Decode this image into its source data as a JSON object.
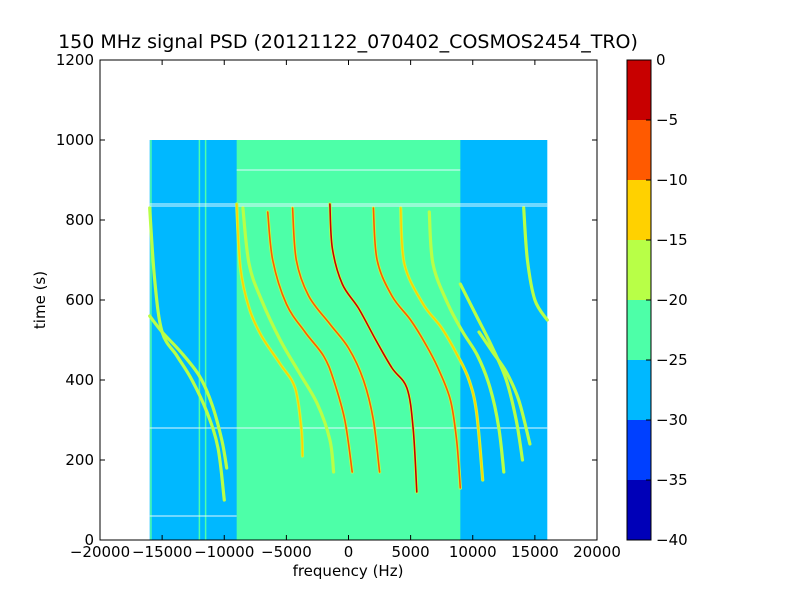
{
  "chart_data": {
    "type": "heatmap",
    "title": "150 MHz signal PSD (20121122_070402_COSMOS2454_TRO)",
    "xlabel": "frequency (Hz)",
    "ylabel": "time (s)",
    "xlim": [
      -20000,
      20000
    ],
    "ylim": [
      0,
      1200
    ],
    "xticks": [
      -20000,
      -15000,
      -10000,
      -5000,
      0,
      5000,
      10000,
      15000,
      20000
    ],
    "xtick_labels": [
      "−20000",
      "−15000",
      "−10000",
      "−5000",
      "0",
      "5000",
      "10000",
      "15000",
      "20000"
    ],
    "yticks": [
      0,
      200,
      400,
      600,
      800,
      1000,
      1200
    ],
    "ytick_labels": [
      "0",
      "200",
      "400",
      "600",
      "800",
      "1000",
      "1200"
    ],
    "data_extent": {
      "x": [
        -16000,
        16000
      ],
      "y": [
        0,
        1000
      ]
    },
    "background_band": {
      "x": [
        -9000,
        9000
      ],
      "level": -22.5
    },
    "outer_level": -27.5,
    "colorbar": {
      "ticks": [
        0,
        -5,
        -10,
        -15,
        -20,
        -25,
        -30,
        -35,
        -40
      ],
      "tick_labels": [
        "0",
        "−5",
        "−10",
        "−15",
        "−20",
        "−25",
        "−30",
        "−35",
        "−40"
      ],
      "levels": [
        {
          "from": -40,
          "to": -35,
          "color": "#0000b8"
        },
        {
          "from": -35,
          "to": -30,
          "color": "#0040ff"
        },
        {
          "from": -30,
          "to": -25,
          "color": "#00b8ff"
        },
        {
          "from": -25,
          "to": -20,
          "color": "#4dffa8"
        },
        {
          "from": -20,
          "to": -15,
          "color": "#b8ff47"
        },
        {
          "from": -15,
          "to": -10,
          "color": "#ffd100"
        },
        {
          "from": -10,
          "to": -5,
          "color": "#ff5a00"
        },
        {
          "from": -5,
          "to": 0,
          "color": "#c80000"
        }
      ]
    },
    "vertical_lines": [
      {
        "x": -15900,
        "level": -22.5
      },
      {
        "x": -12000,
        "level": -22.5
      },
      {
        "x": -11500,
        "level": -22.5
      }
    ],
    "horizontal_lines": [
      {
        "y": 840,
        "x": [
          -16000,
          16000
        ]
      },
      {
        "y": 835,
        "x": [
          -16000,
          16000
        ]
      },
      {
        "y": 925,
        "x": [
          -9000,
          9000
        ]
      },
      {
        "y": 280,
        "x": [
          -16000,
          16000
        ]
      },
      {
        "y": 60,
        "x": [
          -16000,
          -9000
        ]
      }
    ],
    "traces": [
      {
        "points": [
          [
            -16000,
            830
          ],
          [
            -15600,
            650
          ],
          [
            -15000,
            520
          ],
          [
            -13800,
            460
          ],
          [
            -12600,
            400
          ],
          [
            -11400,
            320
          ],
          [
            -10500,
            230
          ],
          [
            -10000,
            100
          ]
        ],
        "level": -17.5
      },
      {
        "points": [
          [
            -16000,
            560
          ],
          [
            -15000,
            520
          ],
          [
            -13500,
            470
          ],
          [
            -12000,
            410
          ],
          [
            -11000,
            340
          ],
          [
            -10200,
            250
          ],
          [
            -9800,
            180
          ]
        ],
        "level": -17.5
      },
      {
        "points": [
          [
            -9000,
            840
          ],
          [
            -8700,
            680
          ],
          [
            -8000,
            580
          ],
          [
            -7000,
            510
          ],
          [
            -5500,
            440
          ],
          [
            -4300,
            380
          ],
          [
            -3800,
            280
          ],
          [
            -3700,
            210
          ]
        ],
        "level": -12.5
      },
      {
        "points": [
          [
            -8500,
            830
          ],
          [
            -8000,
            690
          ],
          [
            -7000,
            600
          ],
          [
            -5500,
            500
          ],
          [
            -4000,
            420
          ],
          [
            -2500,
            340
          ],
          [
            -1500,
            250
          ],
          [
            -1200,
            170
          ]
        ],
        "level": -17.5
      },
      {
        "points": [
          [
            -6500,
            820
          ],
          [
            -6100,
            700
          ],
          [
            -5000,
            590
          ],
          [
            -3500,
            520
          ],
          [
            -2000,
            460
          ],
          [
            -1200,
            400
          ],
          [
            -300,
            300
          ],
          [
            300,
            170
          ]
        ],
        "level": -7.5
      },
      {
        "points": [
          [
            -4500,
            830
          ],
          [
            -4200,
            700
          ],
          [
            -3200,
            610
          ],
          [
            -1500,
            540
          ],
          [
            0,
            480
          ],
          [
            1200,
            400
          ],
          [
            2000,
            300
          ],
          [
            2500,
            170
          ]
        ],
        "level": -7.5
      },
      {
        "points": [
          [
            -1500,
            840
          ],
          [
            -1300,
            730
          ],
          [
            -500,
            640
          ],
          [
            800,
            580
          ],
          [
            2200,
            500
          ],
          [
            3500,
            430
          ],
          [
            4700,
            380
          ],
          [
            5200,
            280
          ],
          [
            5500,
            120
          ]
        ],
        "level": -2.5
      },
      {
        "points": [
          [
            2000,
            830
          ],
          [
            2300,
            700
          ],
          [
            3500,
            610
          ],
          [
            5000,
            550
          ],
          [
            6200,
            490
          ],
          [
            7200,
            430
          ],
          [
            8200,
            350
          ],
          [
            8700,
            250
          ],
          [
            9000,
            130
          ]
        ],
        "level": -7.5
      },
      {
        "points": [
          [
            4200,
            830
          ],
          [
            4500,
            690
          ],
          [
            6000,
            590
          ],
          [
            7500,
            530
          ],
          [
            8800,
            460
          ],
          [
            9700,
            400
          ],
          [
            10300,
            320
          ],
          [
            10800,
            150
          ]
        ],
        "level": -12.5
      },
      {
        "points": [
          [
            6500,
            820
          ],
          [
            6800,
            690
          ],
          [
            8000,
            590
          ],
          [
            9200,
            520
          ],
          [
            10400,
            460
          ],
          [
            11400,
            380
          ],
          [
            12100,
            280
          ],
          [
            12500,
            170
          ]
        ],
        "level": -17.5
      },
      {
        "points": [
          [
            9000,
            640
          ],
          [
            10300,
            560
          ],
          [
            11600,
            480
          ],
          [
            12700,
            400
          ],
          [
            13500,
            300
          ],
          [
            14000,
            200
          ]
        ],
        "level": -17.5
      },
      {
        "points": [
          [
            10500,
            520
          ],
          [
            11600,
            470
          ],
          [
            12700,
            420
          ],
          [
            13700,
            350
          ],
          [
            14600,
            240
          ]
        ],
        "level": -17.5
      },
      {
        "points": [
          [
            14100,
            830
          ],
          [
            14400,
            700
          ],
          [
            15000,
            600
          ],
          [
            16000,
            550
          ]
        ],
        "level": -17.5
      }
    ]
  }
}
